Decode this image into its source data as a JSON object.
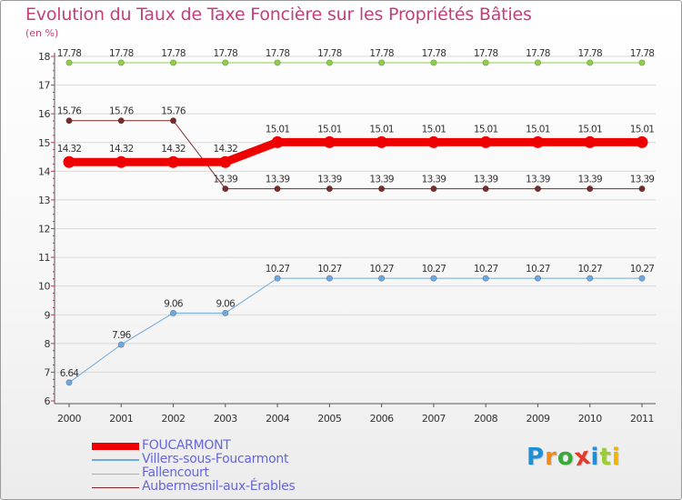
{
  "title": "Evolution du Taux de Taxe Foncière sur les Propriétés Bâties",
  "unit_label": "(en %)",
  "logo": {
    "letters": [
      "P",
      "r",
      "o",
      "x",
      "i",
      "t",
      "i"
    ],
    "colors": [
      "#1e90d8",
      "#f08a1a",
      "#3aa83a",
      "#e23b2e",
      "#1e90d8",
      "#9acd32",
      "#f0b400"
    ]
  },
  "chart_data": {
    "type": "line",
    "title": "Evolution du Taux de Taxe Foncière sur les Propriétés Bâties",
    "ylabel": "(en %)",
    "xlabel": "",
    "x": [
      "2000",
      "2001",
      "2002",
      "2003",
      "2004",
      "2005",
      "2006",
      "2007",
      "2008",
      "2009",
      "2010",
      "2011"
    ],
    "ylim": [
      6,
      18
    ],
    "yticks": [
      "6",
      "7",
      "8",
      "9",
      "10",
      "11",
      "12",
      "13",
      "14",
      "15",
      "16",
      "17",
      "18"
    ],
    "series": [
      {
        "name": "FOUCARMONT",
        "color": "#ee0000",
        "values": [
          14.32,
          14.32,
          14.32,
          14.32,
          15.01,
          15.01,
          15.01,
          15.01,
          15.01,
          15.01,
          15.01,
          15.01
        ],
        "labels": [
          "14.32",
          "14.32",
          "14.32",
          "14.32",
          "15.01",
          "15.01",
          "15.01",
          "15.01",
          "15.01",
          "15.01",
          "15.01",
          "15.01"
        ]
      },
      {
        "name": "Villers-sous-Foucarmont",
        "color": "#6fa8dc",
        "values": [
          6.64,
          7.96,
          9.06,
          9.06,
          10.27,
          10.27,
          10.27,
          10.27,
          10.27,
          10.27,
          10.27,
          10.27
        ],
        "labels": [
          "6.64",
          "7.96",
          "9.06",
          "9.06",
          "10.27",
          "10.27",
          "10.27",
          "10.27",
          "10.27",
          "10.27",
          "10.27",
          "10.27"
        ]
      },
      {
        "name": "Fallencourt",
        "color": "#8fce4a",
        "values": [
          17.78,
          17.78,
          17.78,
          17.78,
          17.78,
          17.78,
          17.78,
          17.78,
          17.78,
          17.78,
          17.78,
          17.78
        ],
        "labels": [
          "17.78",
          "17.78",
          "17.78",
          "17.78",
          "17.78",
          "17.78",
          "17.78",
          "17.78",
          "17.78",
          "17.78",
          "17.78",
          "17.78"
        ]
      },
      {
        "name": "Aubermesnil-aux-Érables",
        "color": "#7a2a2a",
        "values": [
          15.76,
          15.76,
          15.76,
          13.39,
          13.39,
          13.39,
          13.39,
          13.39,
          13.39,
          13.39,
          13.39,
          13.39
        ],
        "labels": [
          "15.76",
          "15.76",
          "15.76",
          "13.39",
          "13.39",
          "13.39",
          "13.39",
          "13.39",
          "13.39",
          "13.39",
          "13.39",
          "13.39"
        ]
      }
    ],
    "legend_position": "bottom-left",
    "grid": true
  }
}
